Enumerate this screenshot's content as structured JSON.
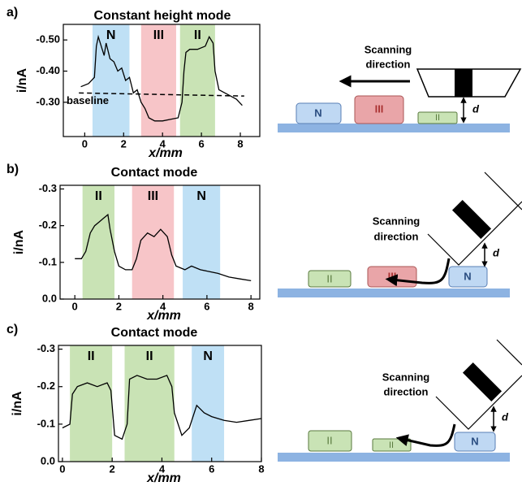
{
  "chart_data": [
    {
      "type": "line",
      "panel": "a)",
      "title": "Constant height mode",
      "xlabel": "x/mm",
      "ylabel": "i/nA",
      "color": "#000000",
      "xlim": [
        -1.1,
        9
      ],
      "ylim": [
        -0.19,
        -0.55
      ],
      "xticks": [
        0,
        2,
        4,
        6,
        8
      ],
      "yticks": [
        {
          "value": -0.5,
          "label": "-0.50"
        },
        {
          "value": -0.4,
          "label": "-0.40"
        },
        {
          "value": -0.3,
          "label": "-0.30"
        }
      ],
      "bands": [
        {
          "label": "N",
          "x": [
            0.4,
            2.3
          ],
          "color": "#bfe0f5"
        },
        {
          "label": "III",
          "x": [
            2.9,
            4.7
          ],
          "color": "#f7c5c8"
        },
        {
          "label": "II",
          "x": [
            4.9,
            6.7
          ],
          "color": "#c9e3b5"
        }
      ],
      "baseline": {
        "label": "baseline",
        "x": [
          -0.3,
          8.2
        ],
        "values": [
          -0.33,
          -0.32
        ]
      },
      "x": [
        -0.2,
        0.2,
        0.5,
        0.6,
        0.7,
        0.9,
        1.0,
        1.1,
        1.3,
        1.5,
        1.7,
        1.9,
        2.1,
        2.3,
        2.5,
        2.7,
        2.9,
        3.1,
        3.3,
        3.6,
        4.0,
        4.4,
        4.8,
        5.0,
        5.1,
        5.2,
        5.4,
        5.8,
        6.2,
        6.4,
        6.6,
        6.7,
        6.9,
        7.2,
        7.5,
        7.8,
        8.1
      ],
      "values": [
        -0.35,
        -0.36,
        -0.38,
        -0.48,
        -0.51,
        -0.47,
        -0.45,
        -0.49,
        -0.44,
        -0.43,
        -0.4,
        -0.41,
        -0.37,
        -0.38,
        -0.33,
        -0.34,
        -0.3,
        -0.28,
        -0.25,
        -0.24,
        -0.24,
        -0.245,
        -0.25,
        -0.3,
        -0.4,
        -0.46,
        -0.47,
        -0.47,
        -0.48,
        -0.51,
        -0.49,
        -0.4,
        -0.34,
        -0.33,
        -0.32,
        -0.31,
        -0.29
      ]
    },
    {
      "type": "line",
      "panel": "b)",
      "title": "Contact mode",
      "xlabel": "x/mm",
      "ylabel": "i/nA",
      "color": "#000000",
      "xlim": [
        -0.67,
        8.4
      ],
      "ylim": [
        0,
        -0.31
      ],
      "xticks": [
        0,
        2,
        4,
        6,
        8
      ],
      "yticks": [
        -0.3,
        -0.2,
        -0.1,
        {
          "value": 0,
          "label": "0.0"
        }
      ],
      "bands": [
        {
          "label": "II",
          "x": [
            0.35,
            1.8
          ],
          "color": "#c9e3b5"
        },
        {
          "label": "III",
          "x": [
            2.6,
            4.5
          ],
          "color": "#f7c5c8"
        },
        {
          "label": "N",
          "x": [
            4.9,
            6.6
          ],
          "color": "#bfe0f5"
        }
      ],
      "x": [
        0,
        0.3,
        0.5,
        0.7,
        0.9,
        1.1,
        1.3,
        1.5,
        1.6,
        1.8,
        2.0,
        2.3,
        2.6,
        2.8,
        3.0,
        3.3,
        3.6,
        3.9,
        4.2,
        4.4,
        4.6,
        5.0,
        5.3,
        5.7,
        6.1,
        6.5,
        7.0,
        7.5,
        8.0
      ],
      "values": [
        -0.11,
        -0.11,
        -0.13,
        -0.18,
        -0.2,
        -0.21,
        -0.22,
        -0.23,
        -0.19,
        -0.13,
        -0.09,
        -0.08,
        -0.08,
        -0.11,
        -0.16,
        -0.18,
        -0.17,
        -0.19,
        -0.17,
        -0.12,
        -0.09,
        -0.08,
        -0.09,
        -0.08,
        -0.075,
        -0.07,
        -0.06,
        -0.055,
        -0.05
      ]
    },
    {
      "type": "line",
      "panel": "c)",
      "title": "Contact mode",
      "xlabel": "x/mm",
      "ylabel": "i/nA",
      "color": "#000000",
      "xlim": [
        -0.16,
        8
      ],
      "ylim": [
        0,
        -0.31
      ],
      "xticks": [
        0,
        2,
        4,
        6,
        8
      ],
      "yticks": [
        -0.3,
        -0.2,
        -0.1,
        {
          "value": 0,
          "label": "0.0"
        }
      ],
      "bands": [
        {
          "label": "II",
          "x": [
            0.3,
            2.0
          ],
          "color": "#c9e3b5"
        },
        {
          "label": "II",
          "x": [
            2.5,
            4.5
          ],
          "color": "#c9e3b5"
        },
        {
          "label": "N",
          "x": [
            5.2,
            6.5
          ],
          "color": "#bfe0f5"
        }
      ],
      "x": [
        0,
        0.3,
        0.4,
        0.6,
        1.0,
        1.4,
        1.8,
        1.95,
        2.1,
        2.4,
        2.6,
        2.7,
        3.0,
        3.4,
        3.8,
        4.2,
        4.4,
        4.5,
        4.8,
        5.1,
        5.4,
        5.7,
        6.0,
        6.5,
        7.0,
        7.5,
        8.0
      ],
      "values": [
        -0.09,
        -0.1,
        -0.18,
        -0.2,
        -0.21,
        -0.2,
        -0.21,
        -0.19,
        -0.07,
        -0.06,
        -0.1,
        -0.22,
        -0.23,
        -0.22,
        -0.22,
        -0.23,
        -0.2,
        -0.13,
        -0.07,
        -0.09,
        -0.15,
        -0.13,
        -0.12,
        -0.11,
        -0.105,
        -0.11,
        -0.115
      ]
    }
  ],
  "diagrams": [
    {
      "direction": [
        "Scanning",
        "direction"
      ],
      "blocks": [
        "N",
        "III",
        "II"
      ],
      "gap": "d"
    },
    {
      "direction": [
        "Scanning",
        "direction"
      ],
      "blocks": [
        "II",
        "III",
        "N"
      ],
      "gap": "d"
    },
    {
      "direction": [
        "Scanning",
        "direction"
      ],
      "blocks": [
        "II",
        "II",
        "N"
      ],
      "gap": "d"
    }
  ]
}
